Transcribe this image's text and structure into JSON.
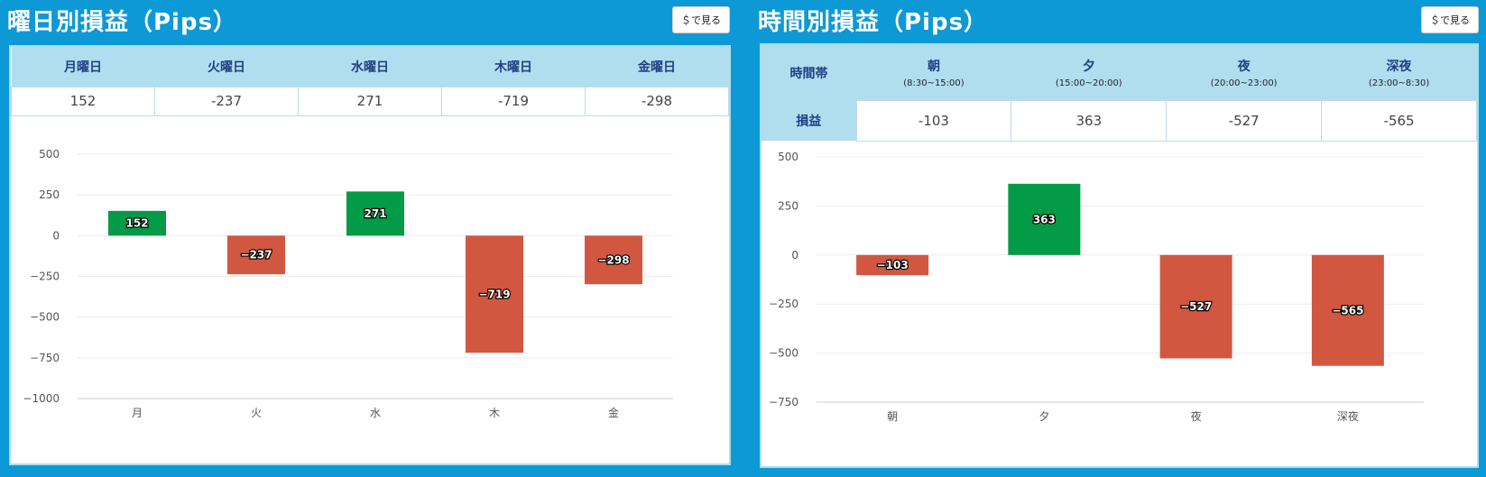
{
  "colors": {
    "background": "#0d99d6",
    "positive": "#039a48",
    "negative": "#d15740",
    "header_cell": "#b0deef",
    "header_text": "#1f3f82"
  },
  "left": {
    "title": "曜日別損益（Pips）",
    "usd_button": "＄で見る",
    "table": {
      "headers": [
        "月曜日",
        "火曜日",
        "水曜日",
        "木曜日",
        "金曜日"
      ],
      "values": [
        "152",
        "-237",
        "271",
        "-719",
        "-298"
      ]
    }
  },
  "right": {
    "title": "時間別損益（Pips）",
    "usd_button": "＄で見る",
    "table": {
      "corner_label": "時間帯",
      "row_label": "損益",
      "headers": [
        {
          "name": "朝",
          "range": "(8:30~15:00)"
        },
        {
          "name": "夕",
          "range": "(15:00~20:00)"
        },
        {
          "name": "夜",
          "range": "(20:00~23:00)"
        },
        {
          "name": "深夜",
          "range": "(23:00~8:30)"
        }
      ],
      "values": [
        "-103",
        "363",
        "-527",
        "-565"
      ]
    }
  },
  "chart_data": [
    {
      "type": "bar",
      "title": "",
      "categories": [
        "月",
        "火",
        "水",
        "木",
        "金"
      ],
      "values": [
        152,
        -237,
        271,
        -719,
        -298
      ],
      "value_labels": [
        "152",
        "−237",
        "271",
        "−719",
        "−298"
      ],
      "ylim": [
        -1000,
        500
      ],
      "yticks": [
        500,
        250,
        0,
        -250,
        -500,
        -750,
        -1000
      ],
      "ytick_labels": [
        "500",
        "250",
        "0",
        "−250",
        "−500",
        "−750",
        "−1000"
      ],
      "grid": true,
      "xlabel": "",
      "ylabel": ""
    },
    {
      "type": "bar",
      "title": "",
      "categories": [
        "朝",
        "夕",
        "夜",
        "深夜"
      ],
      "values": [
        -103,
        363,
        -527,
        -565
      ],
      "value_labels": [
        "−103",
        "363",
        "−527",
        "−565"
      ],
      "ylim": [
        -750,
        500
      ],
      "yticks": [
        500,
        250,
        0,
        -250,
        -500,
        -750
      ],
      "ytick_labels": [
        "500",
        "250",
        "0",
        "−250",
        "−500",
        "−750"
      ],
      "grid": true,
      "xlabel": "",
      "ylabel": ""
    }
  ]
}
